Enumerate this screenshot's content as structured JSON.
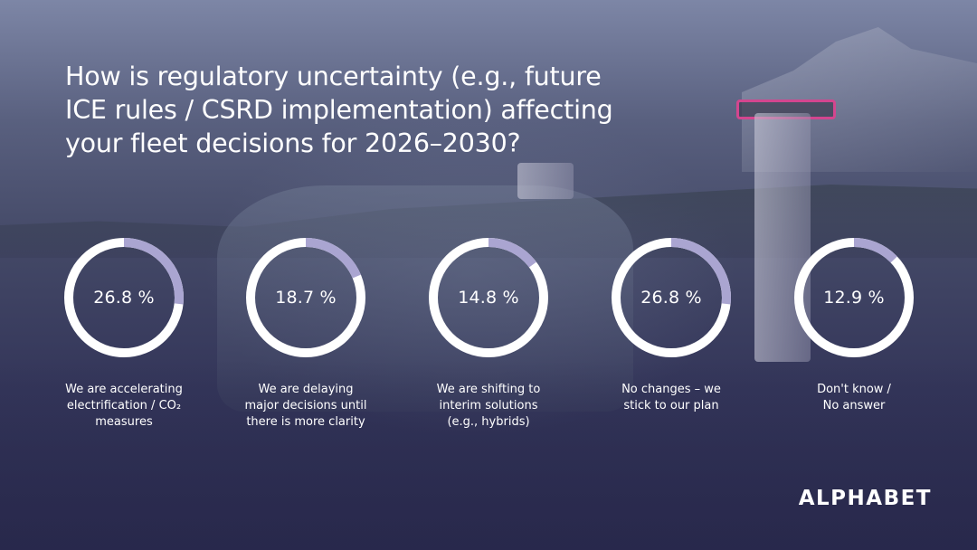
{
  "title_lines": [
    "How is regulatory uncertainty (e.g., future",
    "ICE rules / CSRD implementation) affecting",
    "your fleet decisions for 2026–2030?"
  ],
  "colors": {
    "ring_track": "#ffffff",
    "ring_fill": "#aaa5d1",
    "text": "#ffffff"
  },
  "chart_data": {
    "type": "pie",
    "title": "How is regulatory uncertainty (e.g., future ICE rules / CSRD implementation) affecting your fleet decisions for 2026–2030?",
    "unit": "%",
    "items": [
      {
        "value": 26.8,
        "value_label": "26.8 %",
        "label_lines": [
          "We are accelerating",
          "electrification / CO₂",
          "measures"
        ]
      },
      {
        "value": 18.7,
        "value_label": "18.7 %",
        "label_lines": [
          "We are delaying",
          "major decisions until",
          "there is more clarity"
        ]
      },
      {
        "value": 14.8,
        "value_label": "14.8 %",
        "label_lines": [
          "We are shifting to",
          "interim solutions",
          "(e.g., hybrids)"
        ]
      },
      {
        "value": 26.8,
        "value_label": "26.8 %",
        "label_lines": [
          "No changes – we",
          "stick to our plan"
        ]
      },
      {
        "value": 12.9,
        "value_label": "12.9 %",
        "label_lines": [
          "Don't know /",
          "No answer"
        ]
      }
    ]
  },
  "brand": {
    "logo_text": "ALPHABET"
  }
}
